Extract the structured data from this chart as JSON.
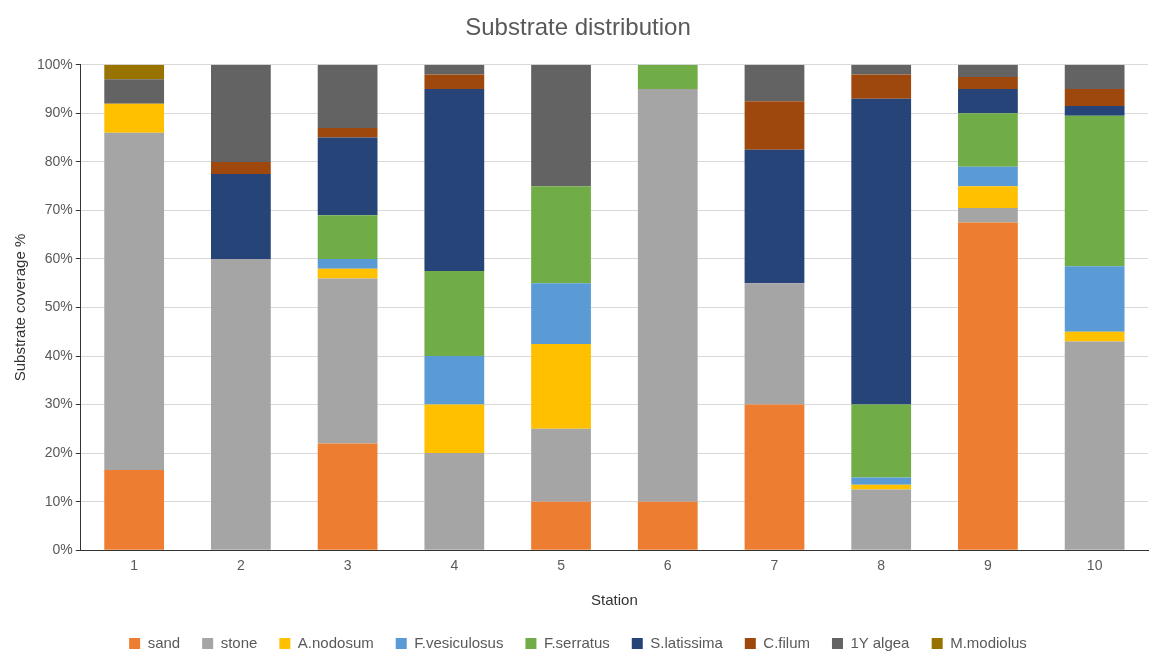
{
  "chart_data": {
    "type": "bar",
    "title": "Substrate distribution",
    "xlabel": "Station",
    "ylabel": "Substrate coverage %",
    "stacked": true,
    "grid": "y",
    "legend": "bottom",
    "categories": [
      "1",
      "2",
      "3",
      "4",
      "5",
      "6",
      "7",
      "8",
      "9",
      "10"
    ],
    "ylim": [
      0,
      100
    ],
    "yticks": [
      {
        "value": 0,
        "label": "0%"
      },
      {
        "value": 10,
        "label": "10%"
      },
      {
        "value": 20,
        "label": "20%"
      },
      {
        "value": 30,
        "label": "30%"
      },
      {
        "value": 40,
        "label": "40%"
      },
      {
        "value": 50,
        "label": "50%"
      },
      {
        "value": 60,
        "label": "60%"
      },
      {
        "value": 70,
        "label": "70%"
      },
      {
        "value": 80,
        "label": "80%"
      },
      {
        "value": 90,
        "label": "90%"
      },
      {
        "value": 100,
        "label": "100%"
      }
    ],
    "series": [
      {
        "name": "sand",
        "color": "#ed7d31",
        "values": [
          16.5,
          0,
          22,
          0,
          10,
          10,
          30,
          0,
          67.5,
          0
        ]
      },
      {
        "name": "stone",
        "color": "#a5a5a5",
        "values": [
          69.5,
          60,
          34,
          20,
          15,
          85,
          25,
          12.5,
          3,
          43
        ]
      },
      {
        "name": "A.nodosum",
        "color": "#ffc000",
        "values": [
          6,
          0,
          2,
          10,
          17.5,
          0,
          0,
          1,
          4.5,
          2
        ]
      },
      {
        "name": "F.vesiculosus",
        "color": "#5b9bd5",
        "values": [
          0,
          0,
          2,
          10,
          12.5,
          0,
          0,
          1.5,
          4,
          13.5
        ]
      },
      {
        "name": "F.serratus",
        "color": "#70ad47",
        "values": [
          0,
          0,
          9,
          17.5,
          20,
          5,
          0,
          15,
          11,
          31
        ]
      },
      {
        "name": "S.latissima",
        "color": "#264478",
        "values": [
          0,
          17.5,
          16,
          37.5,
          0,
          0,
          27.5,
          63,
          5,
          2
        ]
      },
      {
        "name": "C.filum",
        "color": "#9e480e",
        "values": [
          0,
          2.5,
          2,
          3,
          0,
          0,
          10,
          5,
          2.5,
          3.5
        ]
      },
      {
        "name": "1Y algea",
        "color": "#636363",
        "values": [
          5,
          20,
          13,
          2,
          25,
          0,
          7.5,
          2,
          2.5,
          5
        ]
      },
      {
        "name": "M.modiolus",
        "color": "#997300",
        "values": [
          3,
          0,
          0,
          0,
          0,
          0,
          0,
          0,
          0,
          0
        ]
      }
    ]
  }
}
